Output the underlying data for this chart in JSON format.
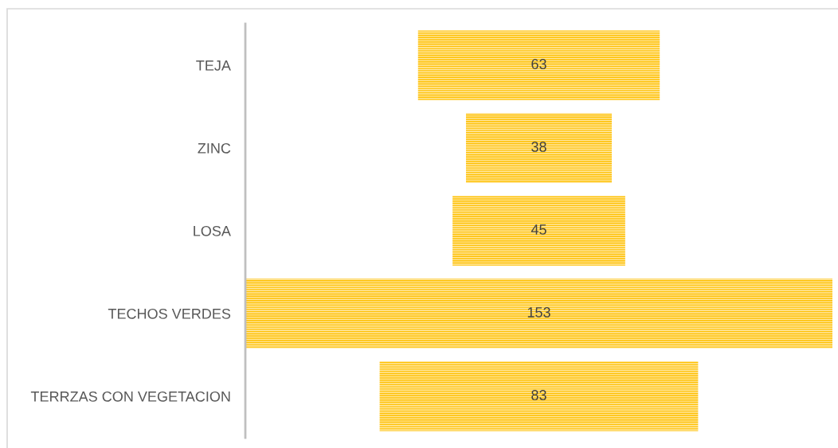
{
  "chart_data": {
    "type": "other",
    "categories": [
      "TEJA",
      "ZINC",
      "LOSA",
      "TECHOS VERDES",
      "TERRZAS CON VEGETACION"
    ],
    "values": [
      63,
      38,
      45,
      153,
      83
    ],
    "color": "#ffc000",
    "data_labels": true
  }
}
